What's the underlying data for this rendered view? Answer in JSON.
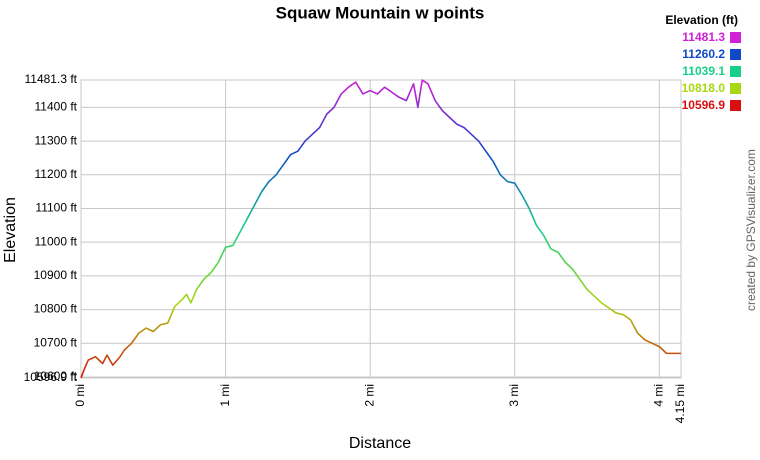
{
  "chart_data": {
    "type": "line",
    "title": "Squaw Mountain w points",
    "x_label": "Distance",
    "y_label": "Elevation",
    "credit": "created by GPSVisualizer.com",
    "x": [
      0,
      0.02,
      0.05,
      0.1,
      0.15,
      0.18,
      0.22,
      0.27,
      0.3,
      0.35,
      0.4,
      0.45,
      0.5,
      0.55,
      0.6,
      0.65,
      0.7,
      0.73,
      0.76,
      0.8,
      0.85,
      0.9,
      0.95,
      1.0,
      1.05,
      1.1,
      1.15,
      1.2,
      1.25,
      1.3,
      1.35,
      1.4,
      1.45,
      1.5,
      1.55,
      1.6,
      1.65,
      1.7,
      1.75,
      1.8,
      1.85,
      1.9,
      1.95,
      2.0,
      2.05,
      2.1,
      2.15,
      2.2,
      2.25,
      2.3,
      2.33,
      2.36,
      2.4,
      2.45,
      2.5,
      2.55,
      2.6,
      2.65,
      2.7,
      2.75,
      2.8,
      2.85,
      2.9,
      2.95,
      3.0,
      3.05,
      3.1,
      3.15,
      3.2,
      3.25,
      3.3,
      3.35,
      3.4,
      3.45,
      3.5,
      3.55,
      3.6,
      3.65,
      3.7,
      3.75,
      3.8,
      3.85,
      3.9,
      3.95,
      4.0,
      4.05,
      4.1,
      4.15
    ],
    "values": [
      10597,
      10620,
      10650,
      10660,
      10640,
      10665,
      10635,
      10660,
      10680,
      10700,
      10730,
      10745,
      10735,
      10755,
      10760,
      10810,
      10830,
      10845,
      10820,
      10860,
      10890,
      10910,
      10940,
      10985,
      10990,
      11030,
      11070,
      11110,
      11150,
      11180,
      11200,
      11230,
      11260,
      11270,
      11300,
      11320,
      11340,
      11380,
      11400,
      11440,
      11460,
      11475,
      11440,
      11450,
      11440,
      11460,
      11445,
      11430,
      11420,
      11470,
      11400,
      11481,
      11470,
      11420,
      11390,
      11370,
      11350,
      11340,
      11320,
      11300,
      11270,
      11240,
      11200,
      11180,
      11175,
      11140,
      11100,
      11050,
      11020,
      10980,
      10970,
      10940,
      10920,
      10890,
      10860,
      10840,
      10820,
      10805,
      10790,
      10785,
      10770,
      10730,
      10710,
      10700,
      10690,
      10670,
      10670,
      10670
    ],
    "xlim": [
      0,
      4.15
    ],
    "xticks": [
      {
        "value": 0,
        "label": "0 mi"
      },
      {
        "value": 1,
        "label": "1 mi"
      },
      {
        "value": 2,
        "label": "2 mi"
      },
      {
        "value": 3,
        "label": "3 mi"
      },
      {
        "value": 4,
        "label": "4 mi"
      },
      {
        "value": 4.15,
        "label": "4.15 mi"
      }
    ],
    "ylim": [
      10596.9,
      11481.3
    ],
    "yticks": [
      {
        "value": 10596.9,
        "label": "10596.9 ft"
      },
      {
        "value": 10600,
        "label": "10600 ft"
      },
      {
        "value": 10700,
        "label": "10700 ft"
      },
      {
        "value": 10800,
        "label": "10800 ft"
      },
      {
        "value": 10900,
        "label": "10900 ft"
      },
      {
        "value": 11000,
        "label": "11000 ft"
      },
      {
        "value": 11100,
        "label": "11100 ft"
      },
      {
        "value": 11200,
        "label": "11200 ft"
      },
      {
        "value": 11300,
        "label": "11300 ft"
      },
      {
        "value": 11400,
        "label": "11400 ft"
      },
      {
        "value": 11481.3,
        "label": "11481.3 ft"
      }
    ],
    "grid": true,
    "legend": {
      "title": "Elevation (ft)",
      "values": [
        11481.3,
        11260.2,
        11039.1,
        {
          "value": 10818,
          "label": "10818.0"
        },
        10596.9
      ],
      "colors": [
        "#d020d8",
        "#1048c8",
        "#18d08a",
        "#a8d810",
        "#d81010"
      ]
    }
  }
}
